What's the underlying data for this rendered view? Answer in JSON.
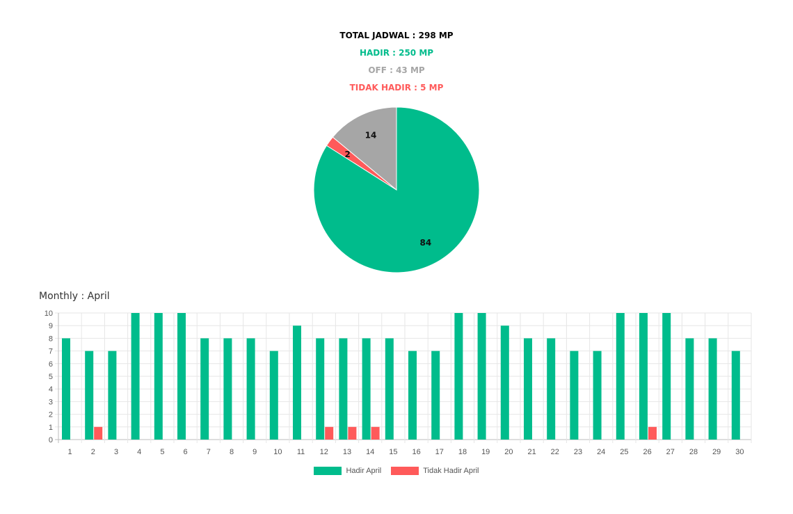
{
  "colors": {
    "hadir": "#00bc8c",
    "off": "#a6a6a6",
    "tidak_hadir": "#ff5a5a",
    "grid": "#e6e6e6",
    "axis": "#bdbdbd"
  },
  "summary": {
    "total": "TOTAL JADWAL : 298 MP",
    "hadir": "HADIR : 250 MP",
    "off": "OFF : 43 MP",
    "tidak_hadir": "TIDAK HADIR : 5 MP"
  },
  "chart_data": [
    {
      "type": "pie",
      "slices": [
        {
          "key": "hadir",
          "value": 84,
          "label": "84"
        },
        {
          "key": "tidak_hadir",
          "value": 2,
          "label": "2"
        },
        {
          "key": "off",
          "value": 14,
          "label": "14"
        }
      ]
    },
    {
      "type": "bar",
      "title": "Monthly : April",
      "categories": [
        "1",
        "2",
        "3",
        "4",
        "5",
        "6",
        "7",
        "8",
        "9",
        "10",
        "11",
        "12",
        "13",
        "14",
        "15",
        "16",
        "17",
        "18",
        "19",
        "20",
        "21",
        "22",
        "23",
        "24",
        "25",
        "26",
        "27",
        "28",
        "29",
        "30"
      ],
      "ylim": [
        0,
        10
      ],
      "yticks": [
        "0",
        "1",
        "2",
        "3",
        "4",
        "5",
        "6",
        "7",
        "8",
        "9",
        "10"
      ],
      "grid": true,
      "legend_position": "bottom",
      "series": [
        {
          "key": "hadir",
          "name": "Hadir April",
          "values": [
            8,
            7,
            7,
            10,
            10,
            10,
            8,
            8,
            8,
            7,
            9,
            8,
            8,
            8,
            8,
            7,
            7,
            10,
            10,
            9,
            8,
            8,
            7,
            7,
            10,
            10,
            10,
            8,
            8,
            7
          ]
        },
        {
          "key": "tidak_hadir",
          "name": "Tidak Hadir April",
          "values": [
            0,
            1,
            0,
            0,
            0,
            0,
            0,
            0,
            0,
            0,
            0,
            1,
            1,
            1,
            0,
            0,
            0,
            0,
            0,
            0,
            0,
            0,
            0,
            0,
            0,
            1,
            0,
            0,
            0,
            0
          ]
        }
      ]
    }
  ]
}
